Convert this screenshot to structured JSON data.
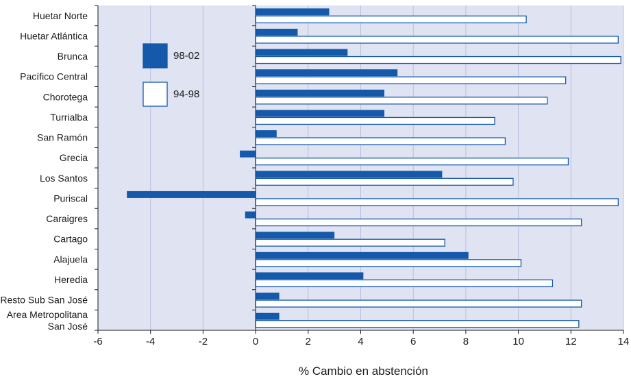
{
  "chart_data": {
    "type": "bar",
    "orientation": "horizontal",
    "categories": [
      "Huetar Norte",
      "Huetar Atlántica",
      "Brunca",
      "Pacífico Central",
      "Chorotega",
      "Turrialba",
      "San Ramón",
      "Grecia",
      "Los Santos",
      "Puriscal",
      "Caraigres",
      "Cartago",
      "Alajuela",
      "Heredia",
      "Resto Sub San José",
      [
        "Area Metropolitana",
        "San José"
      ]
    ],
    "series": [
      {
        "name": "98-02",
        "values": [
          2.8,
          1.6,
          3.5,
          5.4,
          4.9,
          4.9,
          0.8,
          -0.6,
          7.1,
          -4.9,
          -0.4,
          3.0,
          8.1,
          4.1,
          0.9,
          0.9
        ],
        "color": "#1559ab"
      },
      {
        "name": "94-98",
        "values": [
          10.3,
          13.8,
          13.9,
          11.8,
          11.1,
          9.1,
          9.5,
          11.9,
          9.8,
          13.8,
          12.4,
          7.2,
          10.1,
          11.3,
          12.4,
          12.3
        ],
        "color": "#ffffff"
      }
    ],
    "xlabel": "% Cambio en abstención",
    "xlim": [
      -6,
      14
    ],
    "x_ticks": [
      "-6",
      "-4",
      "-2",
      "0",
      "2",
      "4",
      "6",
      "8",
      "10",
      "12",
      "14"
    ],
    "grid": true,
    "legend_position": "top-left",
    "colors": {
      "background": "#dfe3f2",
      "grid": "#b9c0e0",
      "bar_outline": "#1559ab"
    }
  }
}
